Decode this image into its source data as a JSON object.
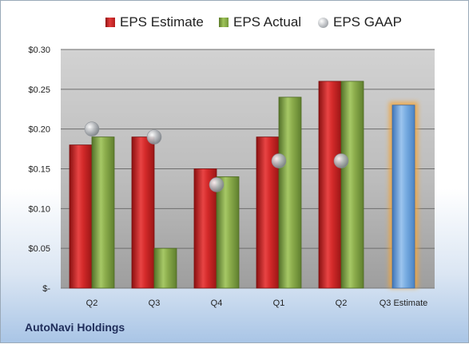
{
  "legend": {
    "estimate": "EPS Estimate",
    "actual": "EPS Actual",
    "gaap": "EPS GAAP"
  },
  "company": "AutoNavi Holdings",
  "colors": {
    "estimate": "#c62020",
    "actual": "#86a84a",
    "gaap": "#a7abb0",
    "future": "#6a9fd8",
    "future_glow": "#f3a63a"
  },
  "chart_data": {
    "type": "bar",
    "categories": [
      "Q2",
      "Q3",
      "Q4",
      "Q1",
      "Q2",
      "Q3 Estimate"
    ],
    "series": [
      {
        "name": "EPS Estimate",
        "values": [
          0.18,
          0.19,
          0.15,
          0.19,
          0.26,
          null
        ]
      },
      {
        "name": "EPS Actual",
        "values": [
          0.19,
          0.05,
          0.14,
          0.24,
          0.26,
          0.23
        ]
      },
      {
        "name": "EPS GAAP",
        "values": [
          0.2,
          0.19,
          0.13,
          0.16,
          0.16,
          null
        ]
      }
    ],
    "y_ticks": [
      "$-",
      "$0.05",
      "$0.10",
      "$0.15",
      "$0.20",
      "$0.25",
      "$0.30"
    ],
    "ylim": [
      0,
      0.3
    ],
    "grid": true,
    "legend_position": "top"
  }
}
